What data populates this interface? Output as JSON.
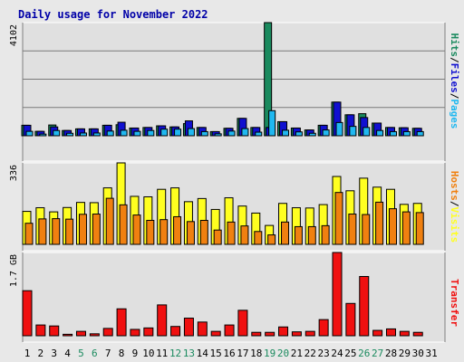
{
  "title": "Daily usage for November 2022",
  "colors": {
    "background": "#e8e8e8",
    "plot_background": "#e0e0e0",
    "gridline": "#7a7a7a",
    "hits": "#1a8a5e",
    "files": "#1010d0",
    "pages": "#20b8f0",
    "visits": "#ffff20",
    "hosts": "#f08010",
    "transfer": "#f01010",
    "title": "#0000a8",
    "weekday_label": "#000000",
    "weekend_label": "#1a8a5e",
    "label_separator": "#000000"
  },
  "chart_data": [
    {
      "type": "bar",
      "panel": "top",
      "categories": [
        "1",
        "2",
        "3",
        "4",
        "5",
        "6",
        "7",
        "8",
        "9",
        "10",
        "11",
        "12",
        "13",
        "14",
        "15",
        "16",
        "17",
        "18",
        "19",
        "20",
        "21",
        "22",
        "23",
        "24",
        "25",
        "26",
        "27",
        "28",
        "29",
        "30",
        "31"
      ],
      "weekend_days": [
        "5",
        "6",
        "12",
        "13",
        "19",
        "20",
        "26",
        "27"
      ],
      "ylabel_parts": [
        {
          "text": "Hits",
          "color_key": "hits"
        },
        {
          "text": "/",
          "color_key": "label_separator"
        },
        {
          "text": "Files",
          "color_key": "files"
        },
        {
          "text": "/",
          "color_key": "label_separator"
        },
        {
          "text": "Pages",
          "color_key": "pages"
        }
      ],
      "ytick_label": "4102",
      "ylim": [
        0,
        4102
      ],
      "gridlines": [
        1025,
        2051,
        3076
      ],
      "series": [
        {
          "name": "Hits",
          "color_key": "hits",
          "values": [
            380,
            160,
            390,
            190,
            250,
            250,
            380,
            400,
            280,
            300,
            360,
            320,
            440,
            300,
            150,
            270,
            630,
            300,
            4102,
            510,
            280,
            210,
            380,
            1220,
            760,
            800,
            460,
            300,
            290,
            270,
            0
          ]
        },
        {
          "name": "Files",
          "color_key": "files",
          "values": [
            380,
            160,
            320,
            190,
            250,
            250,
            380,
            490,
            280,
            300,
            360,
            320,
            540,
            300,
            150,
            270,
            630,
            300,
            300,
            510,
            280,
            210,
            380,
            1220,
            760,
            660,
            460,
            300,
            290,
            270,
            0
          ]
        },
        {
          "name": "Pages",
          "color_key": "pages",
          "values": [
            160,
            60,
            190,
            90,
            100,
            100,
            170,
            200,
            160,
            190,
            240,
            240,
            260,
            150,
            70,
            170,
            260,
            130,
            910,
            200,
            140,
            90,
            210,
            480,
            340,
            300,
            190,
            150,
            150,
            150,
            0
          ]
        }
      ]
    },
    {
      "type": "bar",
      "panel": "middle",
      "categories": [
        "1",
        "2",
        "3",
        "4",
        "5",
        "6",
        "7",
        "8",
        "9",
        "10",
        "11",
        "12",
        "13",
        "14",
        "15",
        "16",
        "17",
        "18",
        "19",
        "20",
        "21",
        "22",
        "23",
        "24",
        "25",
        "26",
        "27",
        "28",
        "29",
        "30",
        "31"
      ],
      "ylabel_parts": [
        {
          "text": "Hosts",
          "color_key": "hosts"
        },
        {
          "text": "/",
          "color_key": "label_separator"
        },
        {
          "text": "Visits",
          "color_key": "visits"
        }
      ],
      "ytick_label": "336",
      "ylim": [
        0,
        336
      ],
      "series": [
        {
          "name": "Visits",
          "color_key": "visits",
          "values": [
            136,
            151,
            134,
            152,
            173,
            172,
            233,
            336,
            198,
            196,
            227,
            233,
            176,
            189,
            144,
            192,
            158,
            129,
            78,
            169,
            151,
            150,
            164,
            280,
            221,
            273,
            236,
            227,
            165,
            169,
            0
          ]
        },
        {
          "name": "Hosts",
          "color_key": "hosts",
          "values": [
            87,
            105,
            106,
            104,
            124,
            125,
            190,
            163,
            121,
            99,
            102,
            114,
            94,
            99,
            59,
            92,
            76,
            53,
            39,
            92,
            73,
            73,
            77,
            214,
            125,
            123,
            174,
            147,
            134,
            131,
            0
          ]
        }
      ]
    },
    {
      "type": "bar",
      "panel": "bottom",
      "categories": [
        "1",
        "2",
        "3",
        "4",
        "5",
        "6",
        "7",
        "8",
        "9",
        "10",
        "11",
        "12",
        "13",
        "14",
        "15",
        "16",
        "17",
        "18",
        "19",
        "20",
        "21",
        "22",
        "23",
        "24",
        "25",
        "26",
        "27",
        "28",
        "29",
        "30",
        "31"
      ],
      "ylabel_parts": [
        {
          "text": "Transfer",
          "color_key": "transfer"
        }
      ],
      "ytick_label": "1.7 GB",
      "ylim": [
        0,
        1.7
      ],
      "series": [
        {
          "name": "Transfer",
          "color_key": "transfer",
          "values": [
            0.92,
            0.22,
            0.2,
            0.03,
            0.09,
            0.04,
            0.15,
            0.55,
            0.13,
            0.16,
            0.63,
            0.19,
            0.36,
            0.28,
            0.09,
            0.22,
            0.52,
            0.07,
            0.07,
            0.18,
            0.08,
            0.09,
            0.33,
            1.7,
            0.66,
            1.21,
            0.11,
            0.14,
            0.09,
            0.07,
            0.0
          ]
        }
      ]
    }
  ]
}
